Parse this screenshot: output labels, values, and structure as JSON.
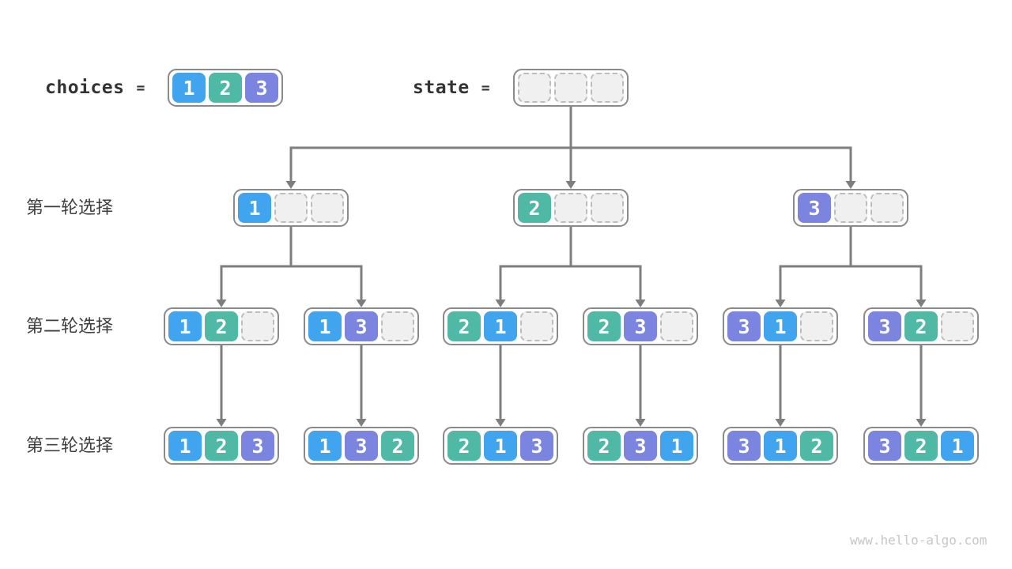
{
  "title_row": {
    "choices_label": "choices",
    "choices_equals": "=",
    "state_label": "state",
    "state_equals": "="
  },
  "choices_box": {
    "cells": [
      "1",
      "2",
      "3"
    ]
  },
  "state_box": {
    "cells": [
      "",
      "",
      ""
    ]
  },
  "rounds": [
    {
      "label": "第一轮选择",
      "boxes": [
        [
          "1",
          "",
          ""
        ],
        [
          "2",
          "",
          ""
        ],
        [
          "3",
          "",
          ""
        ]
      ]
    },
    {
      "label": "第二轮选择",
      "boxes": [
        [
          "1",
          "2",
          ""
        ],
        [
          "1",
          "3",
          ""
        ],
        [
          "2",
          "1",
          ""
        ],
        [
          "2",
          "3",
          ""
        ],
        [
          "3",
          "1",
          ""
        ],
        [
          "3",
          "2",
          ""
        ]
      ]
    },
    {
      "label": "第三轮选择",
      "boxes": [
        [
          "1",
          "2",
          "3"
        ],
        [
          "1",
          "3",
          "2"
        ],
        [
          "2",
          "1",
          "3"
        ],
        [
          "2",
          "3",
          "1"
        ],
        [
          "3",
          "1",
          "2"
        ],
        [
          "3",
          "2",
          "1"
        ]
      ]
    }
  ],
  "colors": {
    "value_1": "#41A4EE",
    "value_2": "#4FB9A5",
    "value_3": "#7B84DE",
    "arrow": "#7E7E7E",
    "box_border": "#8A8A8A",
    "empty_cell_bg": "#F0F0F0",
    "empty_cell_border": "#BDBDBD"
  },
  "watermark": "www.hello-algo.com"
}
